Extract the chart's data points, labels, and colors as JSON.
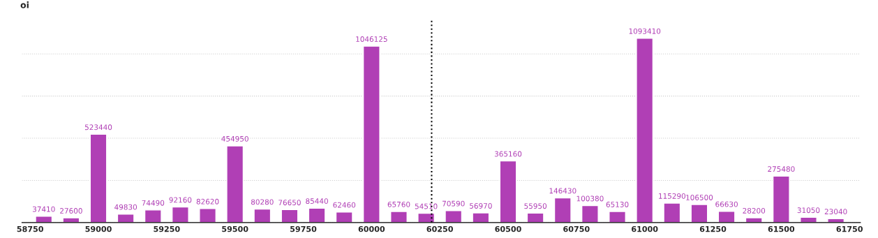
{
  "chart_data": {
    "type": "bar",
    "ylabel": "oi",
    "x": [
      58800,
      58900,
      59000,
      59100,
      59200,
      59300,
      59400,
      59500,
      59600,
      59700,
      59800,
      59900,
      60000,
      60100,
      60200,
      60300,
      60400,
      60500,
      60600,
      60700,
      60800,
      60900,
      61000,
      61100,
      61200,
      61300,
      61400,
      61500,
      61600,
      61700
    ],
    "values": [
      37410,
      27600,
      523440,
      49830,
      74490,
      92160,
      82620,
      454950,
      80280,
      76650,
      85440,
      62460,
      1046125,
      65760,
      54510,
      70590,
      56970,
      365160,
      55950,
      146430,
      100380,
      65130,
      1093410,
      115290,
      106500,
      66630,
      28200,
      275480,
      31050,
      23040
    ],
    "color": "#b03fb5",
    "data_labels": true,
    "xlim": [
      58720,
      61790
    ],
    "xticks": [
      58750,
      59000,
      59250,
      59500,
      59750,
      60000,
      60250,
      60500,
      60750,
      61000,
      61250,
      61500,
      61750
    ],
    "ylim": [
      0,
      1200000
    ],
    "yticks": [
      {
        "value": 0,
        "label": null
      },
      {
        "value": 250000,
        "label": null
      },
      {
        "value": 500000,
        "label": null
      },
      {
        "value": 750000,
        "label": null
      },
      {
        "value": 1000000,
        "label": null
      }
    ],
    "tick_labels": "x",
    "grid": "y",
    "legend": false,
    "ref_lines": [
      {
        "axis": "x",
        "value": 60220,
        "color": "#000000",
        "line_style": "dotted"
      }
    ]
  }
}
